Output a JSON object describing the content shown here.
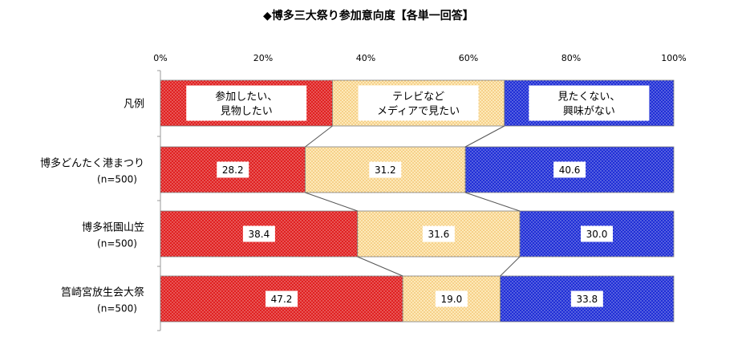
{
  "chart_data": {
    "type": "bar",
    "stacked": true,
    "orientation": "horizontal",
    "title": "◆博多三大祭り参加意向度【各単一回答】",
    "xlim": [
      0,
      100
    ],
    "x_ticks": [
      "0%",
      "20%",
      "40%",
      "60%",
      "80%",
      "100%"
    ],
    "categories": [
      {
        "name": "博多どんたく港まつり",
        "n": "(n=500)"
      },
      {
        "name": "博多祇園山笠",
        "n": "(n=500)"
      },
      {
        "name": "筥崎宮放生会大祭",
        "n": "(n=500)"
      }
    ],
    "legend_row": {
      "label": "凡例",
      "boundaries": [
        33.5,
        67
      ]
    },
    "series": [
      {
        "name": [
          "参加したい、",
          "見物したい"
        ],
        "color": "#e02020",
        "values": [
          28.2,
          38.4,
          47.2
        ]
      },
      {
        "name": [
          "テレビなど",
          "メディアで見たい"
        ],
        "color": "#f6d58c",
        "values": [
          31.2,
          31.6,
          19.0
        ]
      },
      {
        "name": [
          "見たくない、",
          "興味がない"
        ],
        "color": "#1f2ed6",
        "values": [
          40.6,
          30.0,
          33.8
        ]
      }
    ],
    "value_labels": [
      [
        "28.2",
        "31.2",
        "40.6"
      ],
      [
        "38.4",
        "31.6",
        "30.0"
      ],
      [
        "47.2",
        "19.0",
        "33.8"
      ]
    ]
  }
}
